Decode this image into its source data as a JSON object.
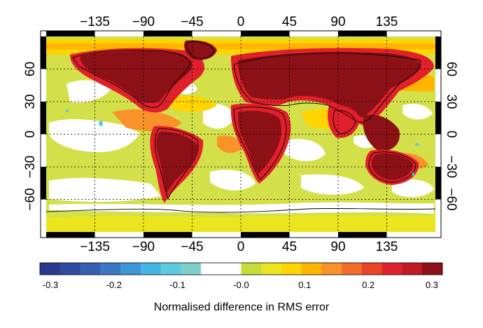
{
  "map": {
    "lon_ticks": [
      "−135",
      "−90",
      "−45",
      "0",
      "45",
      "90",
      "135"
    ],
    "lat_ticks_left": [
      "60",
      "30",
      "0",
      "−30",
      "−60"
    ],
    "lat_ticks_right": [
      "60",
      "30",
      "0",
      "−30",
      "−60"
    ],
    "lon_tick_values": [
      -135,
      -90,
      -45,
      0,
      45,
      90,
      135
    ],
    "lat_tick_values": [
      60,
      30,
      0,
      -30,
      -60
    ],
    "gridlines": "dotted",
    "background_color": "#ffffff",
    "land_outline_color": "#000000"
  },
  "colorbar": {
    "title": "Normalised difference in RMS error",
    "tick_labels": [
      "-0.3",
      "-0.2",
      "-0.1",
      "-0.0",
      "0.1",
      "0.2",
      "0.3"
    ],
    "tick_values": [
      -0.3,
      -0.2,
      -0.1,
      0.0,
      0.1,
      0.2,
      0.3
    ],
    "colors": [
      "#2b3a8f",
      "#2f4ba0",
      "#3560b2",
      "#3b77c4",
      "#3f95d6",
      "#45b5e6",
      "#5ccbe0",
      "#7fd0c8",
      "#ffffff",
      "#ffffff",
      "#c7dc3a",
      "#eae51e",
      "#ffd400",
      "#ffb400",
      "#f9922a",
      "#f26d2a",
      "#e9452a",
      "#e0202a",
      "#c01a24",
      "#8b1116"
    ]
  }
}
